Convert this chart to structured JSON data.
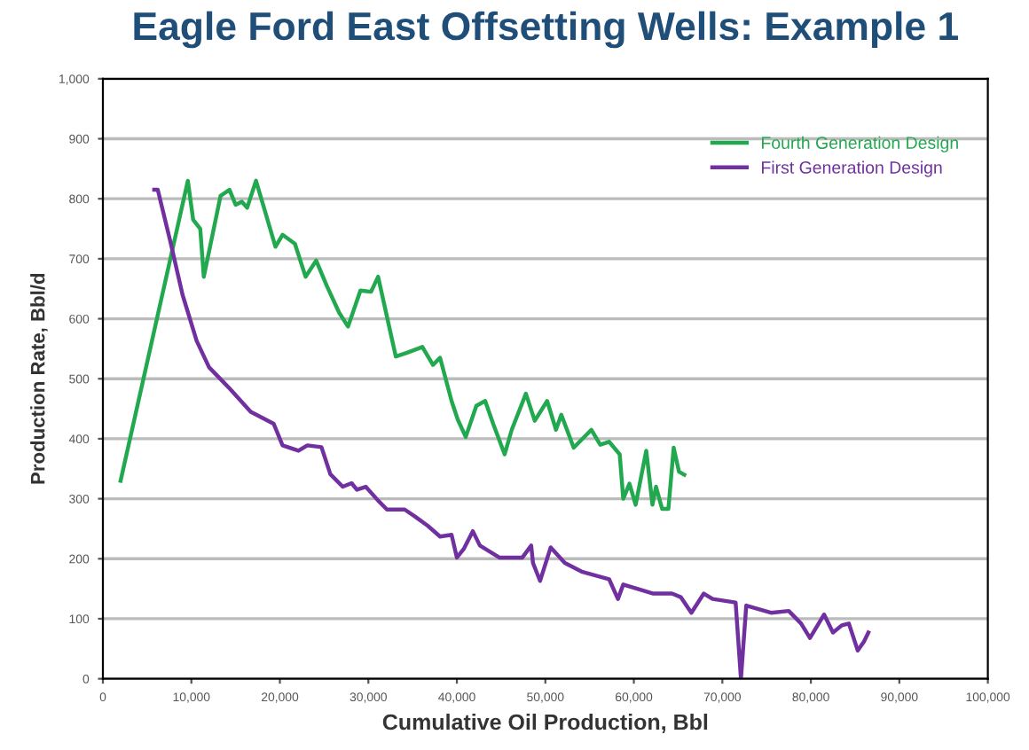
{
  "chart_data": {
    "type": "line",
    "title": "Eagle Ford East Offsetting Wells: Example 1",
    "xlabel": "Cumulative Oil Production, Bbl",
    "ylabel": "Production Rate, Bbl/d",
    "xlim": [
      0,
      100000
    ],
    "ylim": [
      0,
      1000
    ],
    "xticks": [
      0,
      {
        "value": 10000,
        "label": "10,000"
      },
      {
        "value": 20000,
        "label": "20,000"
      },
      {
        "value": 30000,
        "label": "30,000"
      },
      {
        "value": 40000,
        "label": "40,000"
      },
      {
        "value": 50000,
        "label": "50,000"
      },
      {
        "value": 60000,
        "label": "60,000"
      },
      {
        "value": 70000,
        "label": "70,000"
      },
      {
        "value": 80000,
        "label": "80,000"
      },
      {
        "value": 90000,
        "label": "90,000"
      },
      {
        "value": 100000,
        "label": "100,000"
      }
    ],
    "yticks": [
      0,
      100,
      200,
      300,
      400,
      500,
      600,
      700,
      800,
      900,
      {
        "value": 1000,
        "label": "1,000"
      }
    ],
    "grid": "y",
    "legend": "top right",
    "line_style": "solid",
    "marker": "none",
    "series": [
      {
        "name": "Fourth Generation Design",
        "color": "#22a84f",
        "x": [
          2000,
          9600,
          10200,
          11000,
          11400,
          13300,
          14300,
          15000,
          15700,
          16300,
          17300,
          18300,
          19500,
          20300,
          21700,
          22900,
          24100,
          25300,
          26700,
          27700,
          29100,
          30300,
          31100,
          33100,
          34300,
          36100,
          37300,
          38100,
          39400,
          40100,
          41000,
          42200,
          43200,
          44100,
          45400,
          46200,
          47800,
          48800,
          50200,
          51200,
          51800,
          53200,
          55200,
          56200,
          57200,
          58400,
          58800,
          59500,
          60200,
          61400,
          62100,
          62500,
          63200,
          63900,
          64500,
          65100,
          65700
        ],
        "values": [
          330,
          830,
          765,
          750,
          670,
          805,
          815,
          790,
          795,
          785,
          830,
          780,
          720,
          740,
          725,
          670,
          697,
          655,
          610,
          587,
          647,
          645,
          670,
          537,
          543,
          553,
          523,
          535,
          463,
          432,
          403,
          455,
          463,
          425,
          374,
          415,
          475,
          430,
          463,
          415,
          440,
          385,
          415,
          390,
          395,
          374,
          300,
          325,
          290,
          380,
          290,
          320,
          283,
          283,
          385,
          345,
          340
        ]
      },
      {
        "name": "First Generation Design",
        "color": "#7030a0",
        "x": [
          5800,
          6200,
          7600,
          9000,
          10600,
          12000,
          14300,
          16700,
          19300,
          20300,
          22100,
          23100,
          24700,
          25700,
          27100,
          28100,
          28700,
          29700,
          31100,
          32100,
          34100,
          35300,
          36700,
          38100,
          39400,
          40000,
          40800,
          41800,
          42600,
          44800,
          47400,
          48400,
          48600,
          49400,
          50600,
          52200,
          54200,
          57200,
          58200,
          58800,
          62200,
          64300,
          65300,
          66500,
          67900,
          68900,
          71500,
          72100,
          72700,
          75500,
          77500,
          78900,
          79900,
          81500,
          82500,
          83500,
          84300,
          85300,
          86000,
          86500
        ],
        "values": [
          815,
          815,
          730,
          640,
          563,
          519,
          484,
          445,
          425,
          389,
          380,
          389,
          386,
          341,
          320,
          326,
          315,
          320,
          297,
          282,
          282,
          270,
          255,
          237,
          240,
          202,
          217,
          246,
          222,
          202,
          202,
          222,
          193,
          163,
          219,
          193,
          178,
          166,
          133,
          157,
          142,
          142,
          136,
          110,
          142,
          133,
          127,
          0,
          122,
          110,
          113,
          92,
          68,
          107,
          77,
          89,
          92,
          47,
          62,
          77
        ]
      }
    ]
  }
}
